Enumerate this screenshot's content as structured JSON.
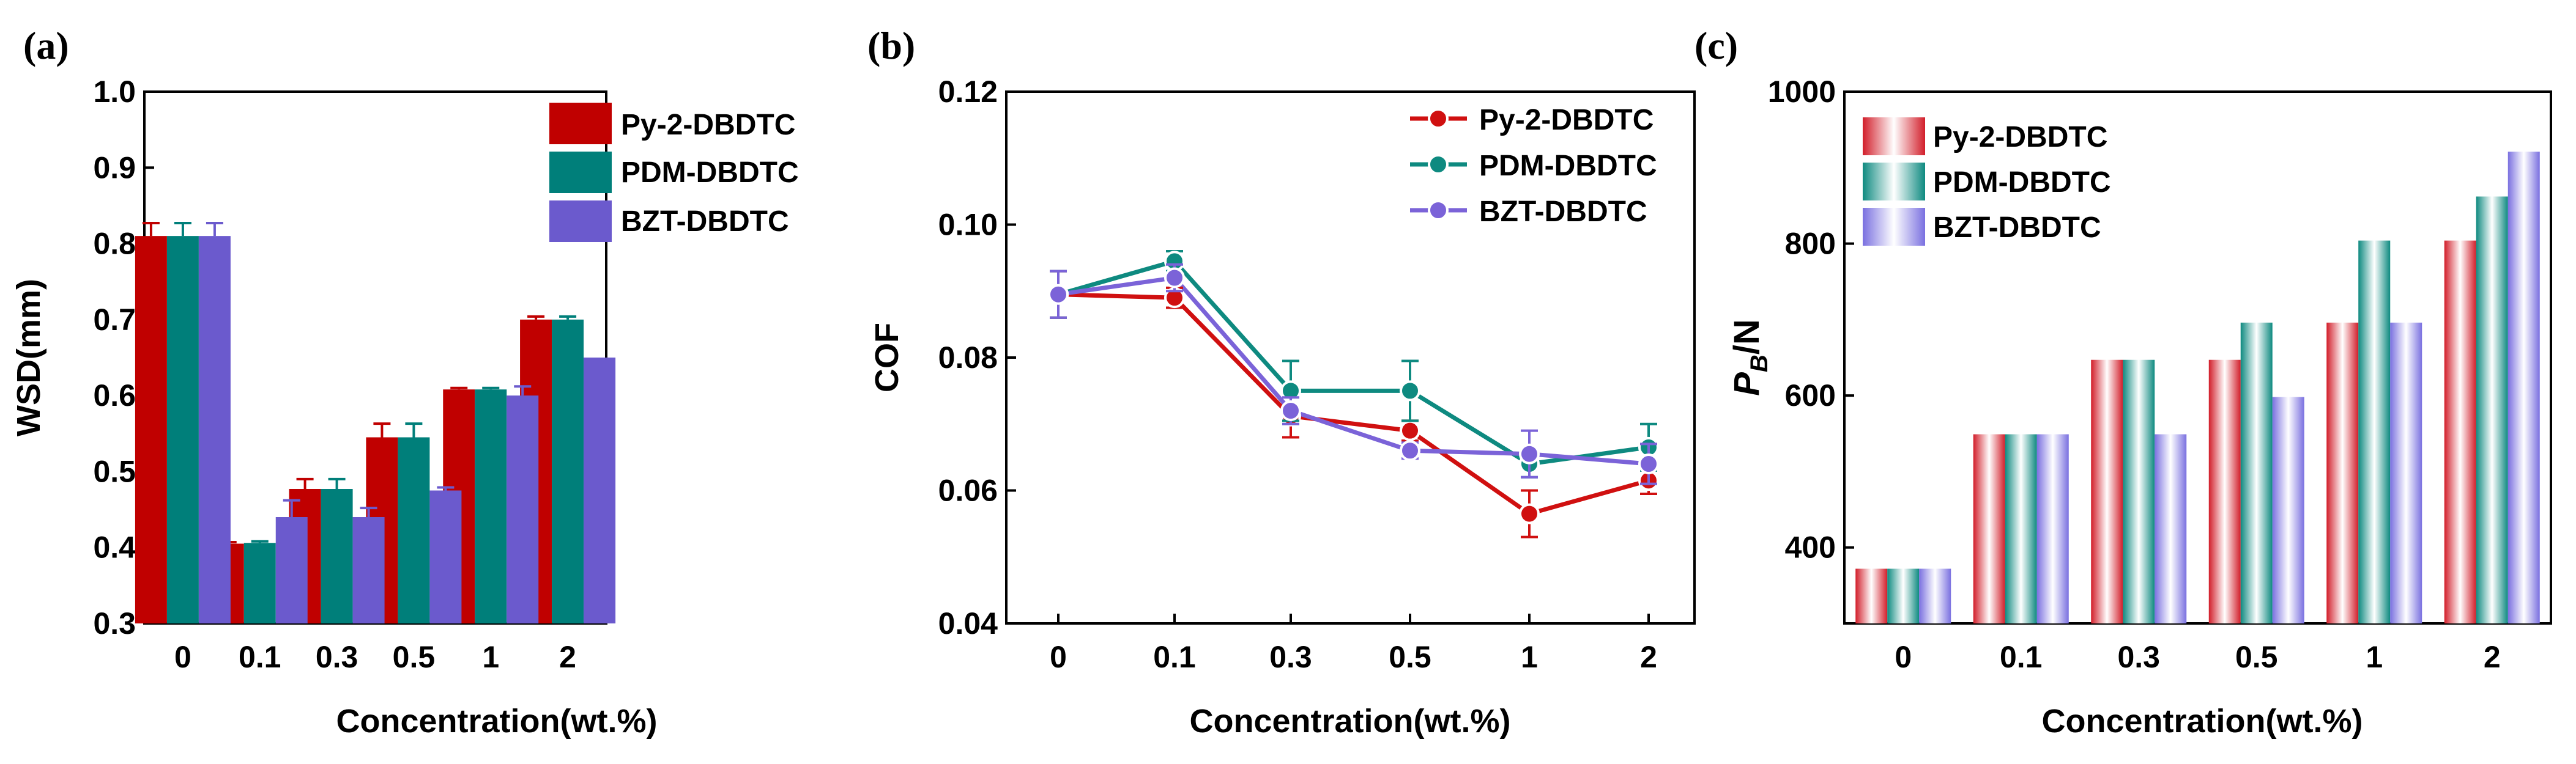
{
  "chart_data": [
    {
      "panel": "(a)",
      "type": "bar",
      "xlabel": "Concentration(wt.%)",
      "ylabel": "WSD(mm)",
      "ylim": [
        0.3,
        1.0
      ],
      "yticks": [
        "0.3",
        "0.4",
        "0.5",
        "0.6",
        "0.7",
        "0.8",
        "0.9",
        "1.0"
      ],
      "categories": [
        "0",
        "0.1",
        "0.3",
        "0.5",
        "1",
        "2"
      ],
      "legend_position": "top-right",
      "series": [
        {
          "name": "Py-2-DBDTC",
          "color": "#c00000",
          "values": [
            0.81,
            0.405,
            0.477,
            0.545,
            0.608,
            0.7
          ],
          "errors": [
            0.017,
            0.002,
            0.013,
            0.018,
            0.002,
            0.004
          ]
        },
        {
          "name": "PDM-DBDTC",
          "color": "#007f7a",
          "values": [
            0.81,
            0.406,
            0.477,
            0.545,
            0.608,
            0.7
          ],
          "errors": [
            0.017,
            0.002,
            0.013,
            0.018,
            0.002,
            0.004
          ]
        },
        {
          "name": "BZT-DBDTC",
          "color": "#6b5acd",
          "values": [
            0.81,
            0.44,
            0.44,
            0.475,
            0.6,
            0.65
          ],
          "errors": [
            0.017,
            0.022,
            0.012,
            0.004,
            0.012,
            0.0
          ]
        }
      ]
    },
    {
      "panel": "(b)",
      "type": "line",
      "xlabel": "Concentration(wt.%)",
      "ylabel": "COF",
      "ylim": [
        0.04,
        0.12
      ],
      "yticks": [
        "0.04",
        "0.06",
        "0.08",
        "0.10",
        "0.12"
      ],
      "categories": [
        "0",
        "0.1",
        "0.3",
        "0.5",
        "1",
        "2"
      ],
      "legend_position": "top-right",
      "series": [
        {
          "name": "Py-2-DBDTC",
          "color": "#d01010",
          "values": [
            0.0895,
            0.089,
            0.0712,
            0.069,
            0.0565,
            0.0615
          ],
          "errors": [
            0.0035,
            0.0015,
            0.0032,
            0.0015,
            0.0035,
            0.002
          ]
        },
        {
          "name": "PDM-DBDTC",
          "color": "#0e8a80",
          "values": [
            0.0895,
            0.0945,
            0.075,
            0.075,
            0.064,
            0.0665
          ],
          "errors": [
            0.0035,
            0.0015,
            0.0045,
            0.0045,
            0.002,
            0.0035
          ]
        },
        {
          "name": "BZT-DBDTC",
          "color": "#7b63d8",
          "values": [
            0.0895,
            0.092,
            0.072,
            0.066,
            0.0655,
            0.064
          ],
          "errors": [
            0.0035,
            0.002,
            0.002,
            0.0012,
            0.0035,
            0.003
          ]
        }
      ]
    },
    {
      "panel": "(c)",
      "type": "bar",
      "xlabel": "Concentration(wt.%)",
      "ylabel_main": "P",
      "ylabel_sub": "B",
      "ylabel_rest": "/N",
      "ylim": [
        300,
        1000
      ],
      "yticks": [
        "400",
        "600",
        "800",
        "1000"
      ],
      "categories": [
        "0",
        "0.1",
        "0.3",
        "0.5",
        "1",
        "2"
      ],
      "legend_position": "top-left",
      "series": [
        {
          "name": "Py-2-DBDTC",
          "color": "#d21e2a",
          "values": [
            372,
            549,
            647,
            647,
            696,
            804
          ]
        },
        {
          "name": "PDM-DBDTC",
          "color": "#0e8a80",
          "values": [
            372,
            549,
            647,
            696,
            804,
            862
          ]
        },
        {
          "name": "BZT-DBDTC",
          "color": "#7a70e0",
          "values": [
            372,
            549,
            549,
            598,
            696,
            921
          ]
        }
      ]
    }
  ]
}
